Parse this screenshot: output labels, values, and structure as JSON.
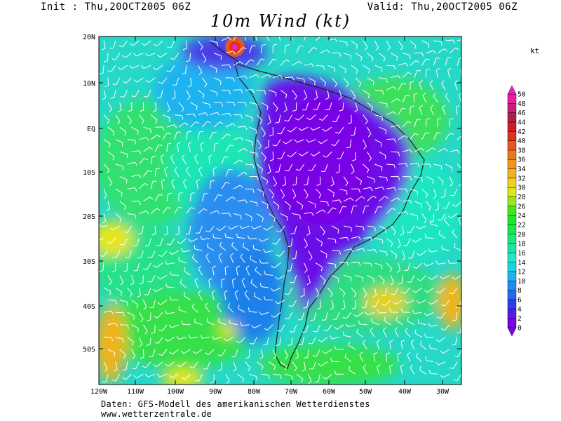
{
  "header": {
    "init_text": "Init : Thu,20OCT2005 06Z",
    "valid_text": "Valid: Thu,20OCT2005 06Z",
    "title": "10m Wind (kt)"
  },
  "colorbar": {
    "unit": "kt",
    "levels": [
      "0",
      "2",
      "4",
      "6",
      "8",
      "10",
      "12",
      "14",
      "16",
      "18",
      "20",
      "22",
      "24",
      "26",
      "28",
      "30",
      "32",
      "34",
      "36",
      "38",
      "40",
      "42",
      "44",
      "46",
      "48",
      "50"
    ],
    "colors": [
      "#7a00e6",
      "#5a18e6",
      "#2f3ce8",
      "#1e6aec",
      "#1e8cf0",
      "#1eb4f0",
      "#1ed2e6",
      "#1ee6c8",
      "#1ee6a0",
      "#1ee678",
      "#1ee650",
      "#1ee62a",
      "#46e61e",
      "#9ae61e",
      "#dce61e",
      "#f0d21e",
      "#f0b41e",
      "#f0961e",
      "#e6781e",
      "#e6561e",
      "#dc321e",
      "#c81e28",
      "#b41e46",
      "#c81e78",
      "#e61ea0",
      "#f01ec8"
    ]
  },
  "map": {
    "lat_labels": [
      "20N",
      "10N",
      "EQ",
      "10S",
      "20S",
      "30S",
      "40S",
      "50S"
    ],
    "lon_labels": [
      "120W",
      "110W",
      "100W",
      "90W",
      "80W",
      "70W",
      "60W",
      "50W",
      "40W",
      "30W"
    ]
  },
  "footer": {
    "line1": "Daten: GFS-Modell des amerikanischen Wetterdienstes",
    "line2": "www.wetterzentrale.de"
  }
}
